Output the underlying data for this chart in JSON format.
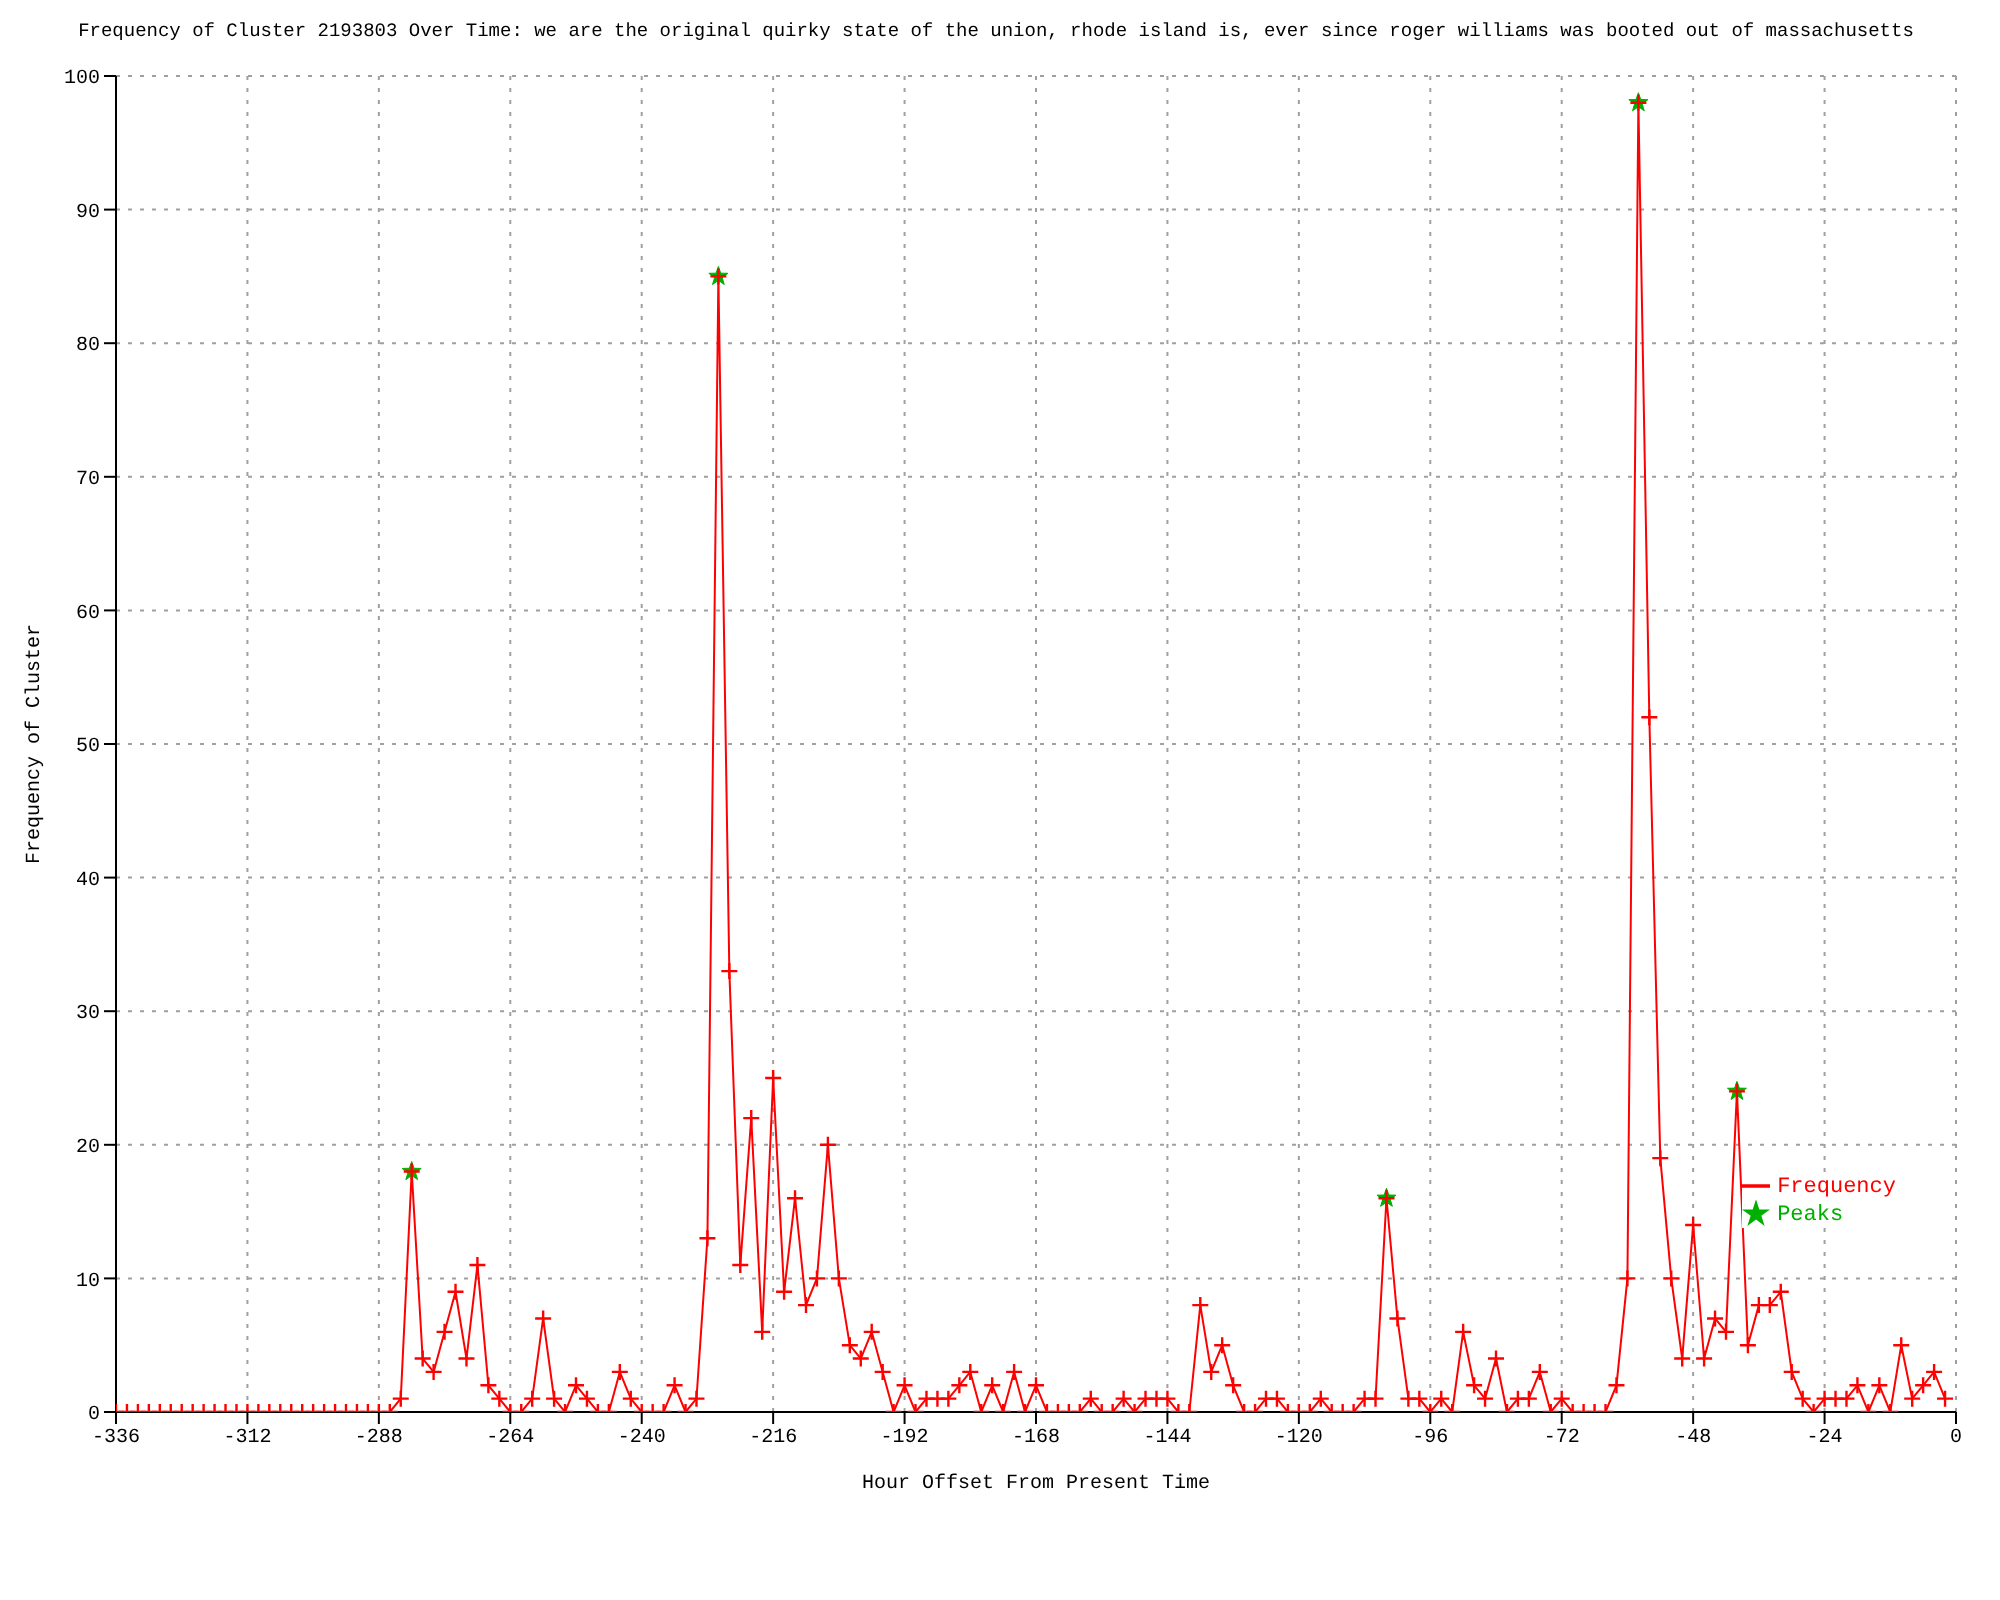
{
  "chart_data": {
    "type": "line",
    "title": "Frequency of Cluster 2193803 Over Time: we are the original quirky state of the union, rhode island is, ever since roger williams was booted out of massachusetts",
    "xlabel": "Hour Offset From Present Time",
    "ylabel": "Frequency of Cluster",
    "x": [
      -336,
      -334,
      -332,
      -330,
      -328,
      -326,
      -324,
      -322,
      -320,
      -318,
      -316,
      -314,
      -312,
      -310,
      -308,
      -306,
      -304,
      -302,
      -300,
      -298,
      -296,
      -294,
      -292,
      -290,
      -288,
      -286,
      -284,
      -282,
      -280,
      -278,
      -276,
      -274,
      -272,
      -270,
      -268,
      -266,
      -264,
      -262,
      -260,
      -258,
      -256,
      -254,
      -252,
      -250,
      -248,
      -246,
      -244,
      -242,
      -240,
      -238,
      -236,
      -234,
      -232,
      -230,
      -228,
      -226,
      -224,
      -222,
      -220,
      -218,
      -216,
      -214,
      -212,
      -210,
      -208,
      -206,
      -204,
      -202,
      -200,
      -198,
      -196,
      -194,
      -192,
      -190,
      -188,
      -186,
      -184,
      -182,
      -180,
      -178,
      -176,
      -174,
      -172,
      -170,
      -168,
      -166,
      -164,
      -162,
      -160,
      -158,
      -156,
      -154,
      -152,
      -150,
      -148,
      -146,
      -144,
      -142,
      -140,
      -138,
      -136,
      -134,
      -132,
      -130,
      -128,
      -126,
      -124,
      -122,
      -120,
      -118,
      -116,
      -114,
      -112,
      -110,
      -108,
      -106,
      -104,
      -102,
      -100,
      -98,
      -96,
      -94,
      -92,
      -90,
      -88,
      -86,
      -84,
      -82,
      -80,
      -78,
      -76,
      -74,
      -72,
      -70,
      -68,
      -66,
      -64,
      -62,
      -60,
      -58,
      -56,
      -54,
      -52,
      -50,
      -48,
      -46,
      -44,
      -42,
      -40,
      -38,
      -36,
      -34,
      -32,
      -30,
      -28,
      -26,
      -24,
      -22,
      -20,
      -18,
      -16,
      -14,
      -12,
      -10,
      -8,
      -6,
      -4,
      -2
    ],
    "series": [
      {
        "name": "Frequency",
        "color": "#ff0000",
        "marker": "cross",
        "values": [
          0,
          0,
          0,
          0,
          0,
          0,
          0,
          0,
          0,
          0,
          0,
          0,
          0,
          0,
          0,
          0,
          0,
          0,
          0,
          0,
          0,
          0,
          0,
          0,
          0,
          0,
          1,
          18,
          4,
          3,
          6,
          9,
          4,
          11,
          2,
          1,
          0,
          0,
          1,
          7,
          1,
          0,
          2,
          1,
          0,
          0,
          3,
          1,
          0,
          0,
          0,
          2,
          0,
          1,
          13,
          85,
          33,
          11,
          22,
          6,
          25,
          9,
          16,
          8,
          10,
          20,
          10,
          5,
          4,
          6,
          3,
          0,
          2,
          0,
          1,
          1,
          1,
          2,
          3,
          0,
          2,
          0,
          3,
          0,
          2,
          0,
          0,
          0,
          0,
          1,
          0,
          0,
          1,
          0,
          1,
          1,
          1,
          0,
          0,
          8,
          3,
          5,
          2,
          0,
          0,
          1,
          1,
          0,
          0,
          0,
          1,
          0,
          0,
          0,
          1,
          1,
          16,
          7,
          1,
          1,
          0,
          1,
          0,
          6,
          2,
          1,
          4,
          0,
          1,
          1,
          3,
          0,
          1,
          0,
          0,
          0,
          0,
          2,
          10,
          98,
          52,
          19,
          10,
          4,
          14,
          4,
          7,
          6,
          24,
          5,
          8,
          8,
          9,
          3,
          1,
          0,
          1,
          1,
          1,
          2,
          0,
          2,
          0,
          5,
          1,
          2,
          3,
          1
        ]
      },
      {
        "name": "Peaks",
        "type": "scatter",
        "color": "#00b000",
        "marker": "star",
        "x": [
          -282,
          -226,
          -104,
          -58,
          -40
        ],
        "values": [
          18,
          85,
          16,
          98,
          24
        ]
      }
    ],
    "xlim": [
      -336,
      0
    ],
    "xticks": [
      -336,
      -312,
      -288,
      -264,
      -240,
      -216,
      -192,
      -168,
      -144,
      -120,
      -96,
      -72,
      -48,
      -24,
      0
    ],
    "ylim": [
      0,
      100
    ],
    "yticks": [
      0,
      10,
      20,
      30,
      40,
      50,
      60,
      70,
      80,
      90,
      100
    ],
    "grid": true,
    "legend": "bottom right",
    "line_style": "solid"
  }
}
